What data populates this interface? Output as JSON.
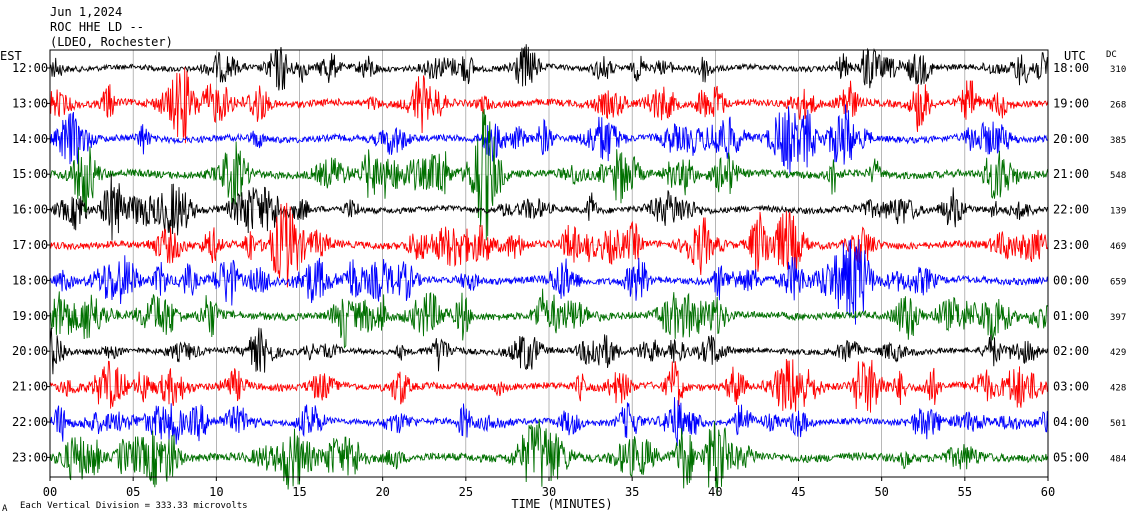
{
  "header": {
    "date": "Jun 1,2024",
    "station": "ROC HHE LD --",
    "network": "(LDEO, Rochester)"
  },
  "left_axis_title": "EST",
  "right_axis_title": "UTC",
  "dc_title": "DC",
  "x_axis_title": "TIME (MINUTES)",
  "footer": {
    "mark": "A",
    "scale_text": "Each Vertical Division =  333.33 microvolts"
  },
  "colors": {
    "trace_cycle": [
      "#000000",
      "#ff0000",
      "#0000ff",
      "#007000"
    ],
    "grid": "#888888",
    "frame": "#000000"
  },
  "chart_data": {
    "type": "line",
    "title": "Jun 1,2024  ROC HHE LD --  (LDEO, Rochester)",
    "xlabel": "TIME (MINUTES)",
    "xlim": [
      0,
      60
    ],
    "x_ticks": [
      "00",
      "05",
      "10",
      "15",
      "20",
      "25",
      "30",
      "35",
      "40",
      "45",
      "50",
      "55",
      "60"
    ],
    "grid": true,
    "rows": [
      {
        "est": "12:00",
        "utc": "18:00",
        "dc": "310",
        "color": "#000000",
        "amplitude": 0.55
      },
      {
        "est": "13:00",
        "utc": "19:00",
        "dc": "268",
        "color": "#ff0000",
        "amplitude": 0.7
      },
      {
        "est": "14:00",
        "utc": "20:00",
        "dc": "385",
        "color": "#0000ff",
        "amplitude": 0.65
      },
      {
        "est": "15:00",
        "utc": "21:00",
        "dc": "548",
        "color": "#007000",
        "amplitude": 0.75
      },
      {
        "est": "16:00",
        "utc": "22:00",
        "dc": "139",
        "color": "#000000",
        "amplitude": 0.6
      },
      {
        "est": "17:00",
        "utc": "23:00",
        "dc": "469",
        "color": "#ff0000",
        "amplitude": 0.7
      },
      {
        "est": "18:00",
        "utc": "00:00",
        "dc": "659",
        "color": "#0000ff",
        "amplitude": 0.7
      },
      {
        "est": "19:00",
        "utc": "01:00",
        "dc": "397",
        "color": "#007000",
        "amplitude": 0.75
      },
      {
        "est": "20:00",
        "utc": "02:00",
        "dc": "429",
        "color": "#000000",
        "amplitude": 0.55
      },
      {
        "est": "21:00",
        "utc": "03:00",
        "dc": "428",
        "color": "#ff0000",
        "amplitude": 0.7
      },
      {
        "est": "22:00",
        "utc": "04:00",
        "dc": "501",
        "color": "#0000ff",
        "amplitude": 0.6
      },
      {
        "est": "23:00",
        "utc": "05:00",
        "dc": "484",
        "color": "#007000",
        "amplitude": 0.8
      }
    ]
  }
}
